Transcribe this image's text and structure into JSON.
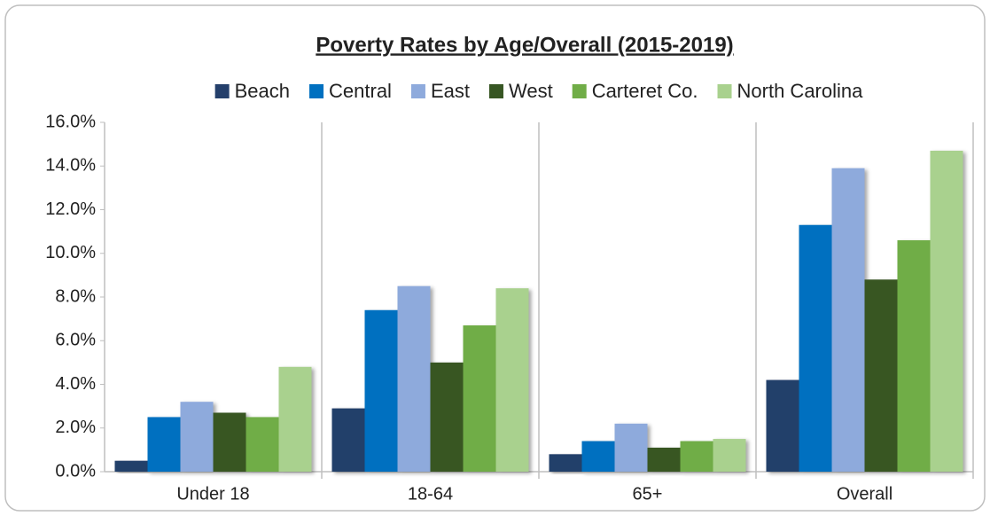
{
  "chart_data": {
    "type": "bar",
    "title": "Poverty Rates by Age/Overall (2015-2019)",
    "categories": [
      "Under 18",
      "18-64",
      "65+",
      "Overall"
    ],
    "series": [
      {
        "name": "Beach",
        "color": "#243f6b",
        "values": [
          0.5,
          2.9,
          0.8,
          4.2
        ]
      },
      {
        "name": "Central",
        "color": "#0070c0",
        "values": [
          2.5,
          7.4,
          1.4,
          11.3
        ]
      },
      {
        "name": "East",
        "color": "#8eaadc",
        "values": [
          3.2,
          8.5,
          2.2,
          13.9
        ]
      },
      {
        "name": "West",
        "color": "#375623",
        "values": [
          2.7,
          5.0,
          1.1,
          8.8
        ]
      },
      {
        "name": "Carteret Co.",
        "color": "#70ad47",
        "values": [
          2.5,
          6.7,
          1.4,
          10.6
        ]
      },
      {
        "name": "North Carolina",
        "color": "#a9d18e",
        "values": [
          4.8,
          8.4,
          1.5,
          14.7
        ]
      }
    ],
    "ylim": [
      0,
      16
    ],
    "yticks": [
      {
        "value": 0,
        "label": "0.0%"
      },
      {
        "value": 2,
        "label": "2.0%"
      },
      {
        "value": 4,
        "label": "4.0%"
      },
      {
        "value": 6,
        "label": "6.0%"
      },
      {
        "value": 8,
        "label": "8.0%"
      },
      {
        "value": 10,
        "label": "10.0%"
      },
      {
        "value": 12,
        "label": "12.0%"
      },
      {
        "value": 14,
        "label": "14.0%"
      },
      {
        "value": 16,
        "label": "16.0%"
      }
    ],
    "legend": "top"
  }
}
